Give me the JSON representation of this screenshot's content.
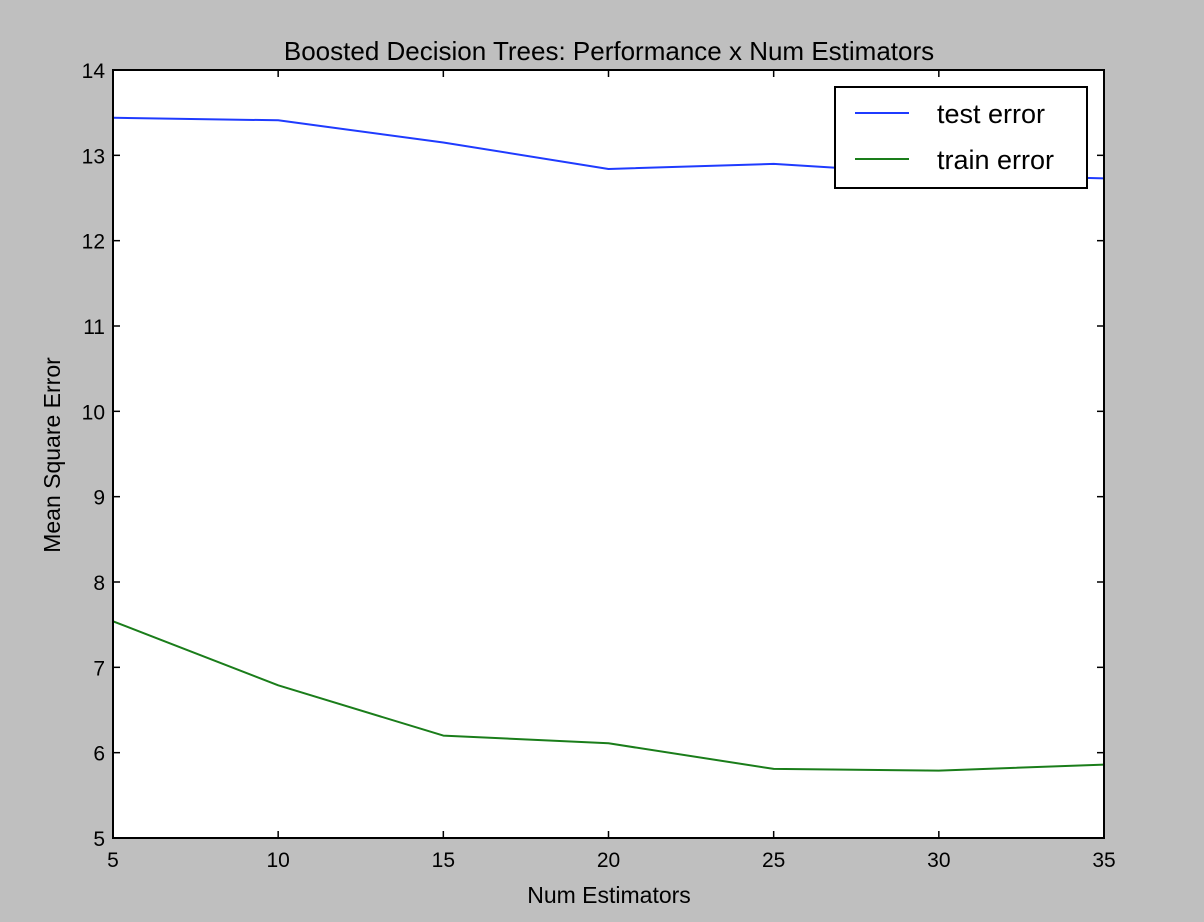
{
  "chart_data": {
    "type": "line",
    "title": "Boosted Decision Trees: Performance x Num Estimators",
    "xlabel": "Num Estimators",
    "ylabel": "Mean Square Error",
    "xlim": [
      5,
      35
    ],
    "ylim": [
      5,
      14
    ],
    "x_ticks": [
      5,
      10,
      15,
      20,
      25,
      30,
      35
    ],
    "y_ticks": [
      5,
      6,
      7,
      8,
      9,
      10,
      11,
      12,
      13,
      14
    ],
    "x": [
      5,
      10,
      15,
      20,
      25,
      30,
      35
    ],
    "series": [
      {
        "name": "test error",
        "color": "#1f3bff",
        "values": [
          13.44,
          13.41,
          13.15,
          12.84,
          12.9,
          12.78,
          12.73
        ]
      },
      {
        "name": "train error",
        "color": "#1a7d1a",
        "values": [
          7.54,
          6.79,
          6.2,
          6.11,
          5.81,
          5.79,
          5.86
        ]
      }
    ],
    "grid": false,
    "legend_position": "top-right",
    "background_color": "#bfbfbf",
    "plot_background_color": "#ffffff"
  }
}
